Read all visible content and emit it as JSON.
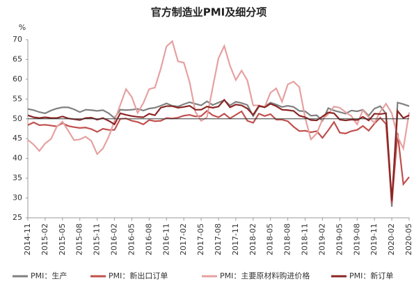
{
  "chart_data": {
    "type": "line",
    "title": "官方制造业PMI及细分项",
    "y_label": "%",
    "categories": [
      "2014-11",
      null,
      null,
      "2015-02",
      null,
      null,
      "2015-05",
      null,
      null,
      "2015-08",
      null,
      null,
      "2015-11",
      null,
      null,
      "2016-02",
      null,
      null,
      "2016-05",
      null,
      null,
      "2016-08",
      null,
      null,
      "2016-11",
      null,
      null,
      "2017-02",
      null,
      null,
      "2017-05",
      null,
      null,
      "2017-08",
      null,
      null,
      "2017-11",
      null,
      null,
      "2018-02",
      null,
      null,
      "2018-05",
      null,
      null,
      "2018-08",
      null,
      null,
      "2018-11",
      null,
      null,
      "2019-02",
      null,
      null,
      "2019-05",
      null,
      null,
      "2019-08",
      null,
      null,
      "2019-11",
      null,
      null,
      "2020-02",
      null,
      null,
      "2020-05"
    ],
    "series": [
      {
        "name": "PMI：生产",
        "color": "#808080",
        "values": [
          52.5,
          52.2,
          51.7,
          51.4,
          52.1,
          52.6,
          52.9,
          52.9,
          52.4,
          51.7,
          52.3,
          52.2,
          52.0,
          52.2,
          51.4,
          50.2,
          52.3,
          52.2,
          52.3,
          52.5,
          52.1,
          52.6,
          52.8,
          53.3,
          53.9,
          53.3,
          53.1,
          53.7,
          54.2,
          53.8,
          53.4,
          54.4,
          53.5,
          54.1,
          54.7,
          53.4,
          54.3,
          54.0,
          53.5,
          50.7,
          53.1,
          53.1,
          54.1,
          53.6,
          53.0,
          53.3,
          53.0,
          52.0,
          51.9,
          50.8,
          50.9,
          49.5,
          52.7,
          52.1,
          51.7,
          51.3,
          52.1,
          51.9,
          52.3,
          50.8,
          52.6,
          53.2,
          51.3,
          27.8,
          54.1,
          53.7,
          53.2
        ]
      },
      {
        "name": "PMI：新出口订单",
        "color": "#c0504d",
        "values": [
          48.4,
          49.1,
          48.4,
          48.5,
          48.3,
          48.1,
          48.9,
          48.2,
          47.9,
          47.7,
          47.8,
          47.4,
          46.7,
          47.5,
          47.2,
          47.2,
          50.0,
          50.1,
          49.5,
          49.2,
          48.6,
          49.7,
          49.4,
          49.5,
          50.2,
          50.1,
          50.3,
          50.8,
          51.0,
          50.6,
          50.7,
          52.0,
          50.9,
          50.4,
          51.3,
          50.1,
          51.0,
          51.9,
          49.5,
          49.0,
          51.3,
          50.7,
          51.2,
          49.8,
          49.8,
          49.4,
          48.0,
          46.9,
          47.0,
          46.6,
          46.9,
          45.2,
          47.1,
          49.2,
          46.5,
          46.3,
          46.9,
          47.2,
          48.2,
          47.0,
          48.8,
          50.3,
          48.7,
          28.7,
          46.4,
          33.5,
          35.3
        ]
      },
      {
        "name": "PMI：主要原材料购进价格",
        "color": "#e6a0a0",
        "values": [
          44.7,
          43.5,
          41.9,
          43.8,
          44.9,
          48.0,
          49.3,
          47.0,
          44.6,
          44.8,
          45.5,
          44.4,
          41.1,
          42.5,
          45.5,
          49.5,
          53.5,
          57.5,
          55.5,
          51.5,
          54.0,
          57.5,
          57.9,
          62.6,
          68.3,
          69.6,
          64.5,
          64.2,
          59.3,
          51.8,
          49.5,
          50.4,
          57.9,
          65.3,
          68.4,
          63.4,
          59.8,
          62.2,
          59.7,
          53.4,
          53.4,
          53.0,
          56.6,
          57.7,
          54.3,
          58.7,
          59.4,
          58.0,
          50.3,
          44.8,
          46.3,
          49.9,
          51.2,
          53.1,
          52.8,
          51.7,
          50.7,
          48.6,
          52.2,
          50.4,
          49.0,
          51.8,
          53.8,
          51.4,
          45.5,
          42.5,
          51.6
        ]
      },
      {
        "name": "PMI：新订单",
        "color": "#8b2525",
        "values": [
          50.9,
          50.4,
          50.2,
          50.4,
          50.2,
          50.2,
          50.6,
          50.1,
          49.9,
          49.7,
          50.2,
          50.3,
          49.8,
          50.2,
          49.5,
          48.6,
          51.4,
          51.0,
          50.7,
          50.5,
          50.4,
          51.3,
          50.9,
          52.8,
          53.2,
          53.2,
          52.8,
          53.0,
          53.3,
          52.3,
          52.3,
          53.1,
          52.8,
          53.1,
          54.8,
          52.9,
          53.6,
          53.4,
          52.6,
          51.0,
          53.3,
          52.9,
          53.8,
          53.2,
          52.3,
          52.2,
          52.0,
          50.8,
          50.4,
          49.7,
          49.6,
          50.6,
          51.6,
          51.4,
          49.8,
          49.6,
          49.8,
          49.7,
          50.5,
          49.6,
          51.3,
          51.2,
          51.4,
          29.3,
          52.0,
          50.2,
          50.9
        ]
      }
    ],
    "ylim": [
      25,
      70
    ],
    "yticks": [
      25,
      30,
      35,
      40,
      45,
      50,
      55,
      60,
      65,
      70
    ],
    "hline": 50,
    "legend": "bottom"
  }
}
